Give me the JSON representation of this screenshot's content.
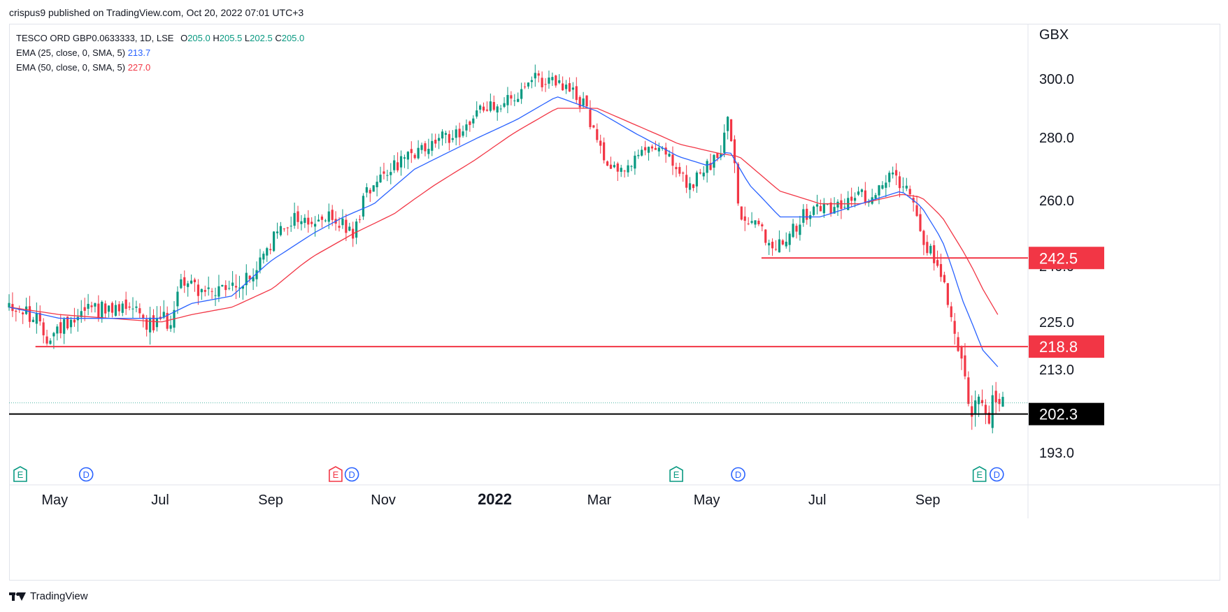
{
  "header": {
    "publisher": "crispus9 published on TradingView.com, Oct 20, 2022 07:01 UTC+3"
  },
  "legend": {
    "symbol": "TESCO ORD GBP0.0633333, 1D, LSE",
    "ohlc": [
      {
        "label": "O",
        "value": "205.0"
      },
      {
        "label": "H",
        "value": "205.5"
      },
      {
        "label": "L",
        "value": "202.5"
      },
      {
        "label": "C",
        "value": "205.0"
      }
    ],
    "ema25_label": "EMA (25, close, 0, SMA, 5)",
    "ema25_value": "213.7",
    "ema50_label": "EMA (50, close, 0, SMA, 5)",
    "ema50_value": "227.0"
  },
  "footer": {
    "brand": "TradingView"
  },
  "colors": {
    "up": "#089981",
    "down": "#f23645",
    "ema25": "#2962ff",
    "ema50": "#f23645",
    "level": "#f23645",
    "support": "#000000",
    "grid": "#e0e3eb",
    "marker_blue": "#2962ff",
    "marker_green": "#089981",
    "marker_red": "#f23645"
  },
  "chart_data": {
    "type": "candlestick",
    "currency": "GBX",
    "y_ticks": [
      {
        "label": "300.0",
        "value": 300
      },
      {
        "label": "280.0",
        "value": 280
      },
      {
        "label": "260.0",
        "value": 260
      },
      {
        "label": "240.0",
        "value": 240
      },
      {
        "label": "225.0",
        "value": 225
      },
      {
        "label": "213.0",
        "value": 213
      },
      {
        "label": "193.0",
        "value": 193
      }
    ],
    "x_ticks": [
      {
        "label": "May",
        "t": 0.045,
        "bold": false
      },
      {
        "label": "Jul",
        "t": 0.149,
        "bold": false
      },
      {
        "label": "Sep",
        "t": 0.258,
        "bold": false
      },
      {
        "label": "Nov",
        "t": 0.369,
        "bold": false
      },
      {
        "label": "2022",
        "t": 0.479,
        "bold": true
      },
      {
        "label": "Mar",
        "t": 0.582,
        "bold": false
      },
      {
        "label": "May",
        "t": 0.688,
        "bold": false
      },
      {
        "label": "Jul",
        "t": 0.797,
        "bold": false
      },
      {
        "label": "Sep",
        "t": 0.906,
        "bold": false
      }
    ],
    "price_keyframes": [
      [
        0,
        230
      ],
      [
        0.02,
        227
      ],
      [
        0.04,
        221
      ],
      [
        0.06,
        226
      ],
      [
        0.08,
        230
      ],
      [
        0.1,
        227
      ],
      [
        0.12,
        231
      ],
      [
        0.14,
        224
      ],
      [
        0.16,
        226
      ],
      [
        0.17,
        237
      ],
      [
        0.2,
        232
      ],
      [
        0.22,
        234
      ],
      [
        0.24,
        237
      ],
      [
        0.26,
        248
      ],
      [
        0.28,
        255
      ],
      [
        0.3,
        253
      ],
      [
        0.32,
        255
      ],
      [
        0.34,
        249
      ],
      [
        0.35,
        262
      ],
      [
        0.37,
        270
      ],
      [
        0.4,
        274
      ],
      [
        0.42,
        279
      ],
      [
        0.44,
        281
      ],
      [
        0.47,
        291
      ],
      [
        0.5,
        293
      ],
      [
        0.52,
        300
      ],
      [
        0.55,
        297
      ],
      [
        0.57,
        290
      ],
      [
        0.58,
        277
      ],
      [
        0.6,
        270
      ],
      [
        0.62,
        273
      ],
      [
        0.64,
        279
      ],
      [
        0.66,
        268
      ],
      [
        0.67,
        264
      ],
      [
        0.7,
        274
      ],
      [
        0.71,
        287
      ],
      [
        0.72,
        255
      ],
      [
        0.74,
        254
      ],
      [
        0.75,
        245
      ],
      [
        0.77,
        251
      ],
      [
        0.79,
        257
      ],
      [
        0.82,
        259
      ],
      [
        0.85,
        262
      ],
      [
        0.87,
        268
      ],
      [
        0.89,
        264
      ],
      [
        0.9,
        249
      ],
      [
        0.92,
        238
      ],
      [
        0.93,
        226
      ],
      [
        0.94,
        215
      ],
      [
        0.95,
        202
      ],
      [
        0.96,
        206
      ],
      [
        0.965,
        198
      ],
      [
        0.97,
        205
      ],
      [
        0.98,
        205
      ]
    ],
    "ema25_keyframes": [
      [
        0,
        229
      ],
      [
        0.05,
        226
      ],
      [
        0.1,
        226
      ],
      [
        0.15,
        226
      ],
      [
        0.18,
        230
      ],
      [
        0.22,
        232
      ],
      [
        0.26,
        242
      ],
      [
        0.3,
        250
      ],
      [
        0.33,
        255
      ],
      [
        0.36,
        259
      ],
      [
        0.4,
        270
      ],
      [
        0.45,
        278
      ],
      [
        0.5,
        286
      ],
      [
        0.54,
        294
      ],
      [
        0.58,
        289
      ],
      [
        0.62,
        281
      ],
      [
        0.66,
        274
      ],
      [
        0.69,
        271
      ],
      [
        0.71,
        276
      ],
      [
        0.73,
        265
      ],
      [
        0.76,
        255
      ],
      [
        0.8,
        255
      ],
      [
        0.84,
        259
      ],
      [
        0.88,
        263
      ],
      [
        0.9,
        258
      ],
      [
        0.92,
        248
      ],
      [
        0.94,
        231
      ],
      [
        0.96,
        218
      ],
      [
        0.975,
        213.7
      ]
    ],
    "ema50_keyframes": [
      [
        0,
        229
      ],
      [
        0.05,
        227
      ],
      [
        0.1,
        226
      ],
      [
        0.15,
        225
      ],
      [
        0.18,
        227
      ],
      [
        0.22,
        229
      ],
      [
        0.26,
        234
      ],
      [
        0.3,
        243
      ],
      [
        0.34,
        250
      ],
      [
        0.38,
        256
      ],
      [
        0.42,
        265
      ],
      [
        0.46,
        273
      ],
      [
        0.5,
        282
      ],
      [
        0.54,
        290
      ],
      [
        0.58,
        290
      ],
      [
        0.62,
        284
      ],
      [
        0.66,
        278
      ],
      [
        0.7,
        275
      ],
      [
        0.72,
        274
      ],
      [
        0.76,
        263
      ],
      [
        0.8,
        259
      ],
      [
        0.84,
        259
      ],
      [
        0.88,
        262
      ],
      [
        0.9,
        261
      ],
      [
        0.92,
        255
      ],
      [
        0.94,
        245
      ],
      [
        0.96,
        234
      ],
      [
        0.975,
        227
      ]
    ],
    "levels": [
      {
        "label": "242.5",
        "value": 242.5,
        "start": 0.742,
        "style": "red-box"
      },
      {
        "label": "218.8",
        "value": 218.8,
        "start": 0.026,
        "style": "red-box"
      },
      {
        "label": "202.3",
        "value": 202.3,
        "start": 0.0,
        "style": "black-box"
      }
    ],
    "last_close": 205.0,
    "markers": [
      {
        "label": "E",
        "t": 0.011,
        "kind": "earnings-green"
      },
      {
        "label": "D",
        "t": 0.076,
        "kind": "dividend"
      },
      {
        "label": "E",
        "t": 0.322,
        "kind": "earnings-red"
      },
      {
        "label": "D",
        "t": 0.338,
        "kind": "dividend"
      },
      {
        "label": "E",
        "t": 0.658,
        "kind": "earnings-green"
      },
      {
        "label": "D",
        "t": 0.719,
        "kind": "dividend"
      },
      {
        "label": "E",
        "t": 0.957,
        "kind": "earnings-green"
      },
      {
        "label": "D",
        "t": 0.974,
        "kind": "dividend"
      }
    ]
  }
}
